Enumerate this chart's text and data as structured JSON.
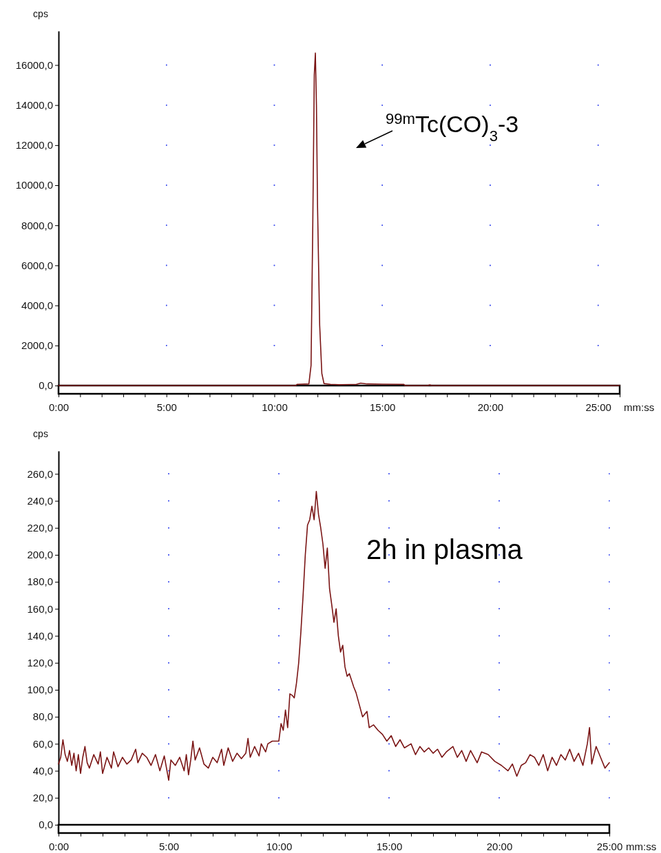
{
  "chart_data": [
    {
      "type": "line",
      "xlabel": "mm:ss",
      "ylabel": "cps",
      "grid": true,
      "xlim": [
        0,
        26
      ],
      "ylim": [
        0,
        17700
      ],
      "xticks": [
        {
          "value": 0,
          "label": "0:00"
        },
        {
          "value": 1,
          "label": null
        },
        {
          "value": 2,
          "label": null
        },
        {
          "value": 3,
          "label": null
        },
        {
          "value": 4,
          "label": null
        },
        {
          "value": 5,
          "label": "5:00"
        },
        {
          "value": 6,
          "label": null
        },
        {
          "value": 7,
          "label": null
        },
        {
          "value": 8,
          "label": null
        },
        {
          "value": 9,
          "label": null
        },
        {
          "value": 10,
          "label": "10:00"
        },
        {
          "value": 11,
          "label": null
        },
        {
          "value": 12,
          "label": null
        },
        {
          "value": 13,
          "label": null
        },
        {
          "value": 14,
          "label": null
        },
        {
          "value": 15,
          "label": "15:00"
        },
        {
          "value": 16,
          "label": null
        },
        {
          "value": 17,
          "label": null
        },
        {
          "value": 18,
          "label": null
        },
        {
          "value": 19,
          "label": null
        },
        {
          "value": 20,
          "label": "20:00"
        },
        {
          "value": 21,
          "label": null
        },
        {
          "value": 22,
          "label": null
        },
        {
          "value": 23,
          "label": null
        },
        {
          "value": 24,
          "label": null
        },
        {
          "value": 25,
          "label": "25:00"
        },
        {
          "value": 26,
          "label": null
        }
      ],
      "yticks": [
        {
          "value": 0,
          "label": "0,0"
        },
        {
          "value": 2000,
          "label": "2000,0"
        },
        {
          "value": 4000,
          "label": "4000,0"
        },
        {
          "value": 6000,
          "label": "6000,0"
        },
        {
          "value": 8000,
          "label": "8000,0"
        },
        {
          "value": 10000,
          "label": "10000,0"
        },
        {
          "value": 12000,
          "label": "12000,0"
        },
        {
          "value": 14000,
          "label": "14000,0"
        },
        {
          "value": 16000,
          "label": "16000,0"
        }
      ],
      "annotations": [
        "$^{99m}$Tc(CO)$_{3}$-3"
      ],
      "series": [
        {
          "color": "#7a1414",
          "x": [
            0,
            11.0,
            11.05,
            11.6,
            11.7,
            11.78,
            11.85,
            11.9,
            11.95,
            12.0,
            12.1,
            12.2,
            12.3,
            12.6,
            13.0,
            13.8,
            14.0,
            14.3,
            15.0,
            16.0,
            16.05,
            17.1,
            17.2,
            17.3,
            26
          ],
          "values": [
            0,
            0,
            60,
            80,
            1000,
            8000,
            15500,
            16600,
            14000,
            9000,
            3000,
            600,
            100,
            60,
            40,
            60,
            120,
            80,
            70,
            60,
            0,
            0,
            30,
            0,
            0
          ]
        }
      ]
    },
    {
      "type": "line",
      "xlabel": "mm:ss",
      "ylabel": "cps",
      "grid": true,
      "xlim": [
        0,
        25
      ],
      "ylim": [
        0,
        277
      ],
      "xticks": [
        {
          "value": 0,
          "label": "0:00"
        },
        {
          "value": 1,
          "label": null
        },
        {
          "value": 2,
          "label": null
        },
        {
          "value": 3,
          "label": null
        },
        {
          "value": 4,
          "label": null
        },
        {
          "value": 5,
          "label": "5:00"
        },
        {
          "value": 6,
          "label": null
        },
        {
          "value": 7,
          "label": null
        },
        {
          "value": 8,
          "label": null
        },
        {
          "value": 9,
          "label": null
        },
        {
          "value": 10,
          "label": "10:00"
        },
        {
          "value": 11,
          "label": null
        },
        {
          "value": 12,
          "label": null
        },
        {
          "value": 13,
          "label": null
        },
        {
          "value": 14,
          "label": null
        },
        {
          "value": 15,
          "label": "15:00"
        },
        {
          "value": 16,
          "label": null
        },
        {
          "value": 17,
          "label": null
        },
        {
          "value": 18,
          "label": null
        },
        {
          "value": 19,
          "label": null
        },
        {
          "value": 20,
          "label": "20:00"
        },
        {
          "value": 21,
          "label": null
        },
        {
          "value": 22,
          "label": null
        },
        {
          "value": 23,
          "label": null
        },
        {
          "value": 24,
          "label": null
        },
        {
          "value": 25,
          "label": "25:00"
        }
      ],
      "yticks": [
        {
          "value": 0,
          "label": "0,0"
        },
        {
          "value": 20,
          "label": "20,0"
        },
        {
          "value": 40,
          "label": "40,0"
        },
        {
          "value": 60,
          "label": "60,0"
        },
        {
          "value": 80,
          "label": "80,0"
        },
        {
          "value": 100,
          "label": "100,0"
        },
        {
          "value": 120,
          "label": "120,0"
        },
        {
          "value": 140,
          "label": "140,0"
        },
        {
          "value": 160,
          "label": "160,0"
        },
        {
          "value": 180,
          "label": "180,0"
        },
        {
          "value": 200,
          "label": "200,0"
        },
        {
          "value": 220,
          "label": "220,0"
        },
        {
          "value": 240,
          "label": "240,0"
        },
        {
          "value": 260,
          "label": "260,0"
        }
      ],
      "annotations": [
        "2h in plasma"
      ],
      "series": [
        {
          "color": "#7a1414",
          "x": [
            0,
            0.1,
            0.2,
            0.3,
            0.4,
            0.5,
            0.6,
            0.7,
            0.8,
            0.9,
            1.0,
            1.1,
            1.2,
            1.3,
            1.4,
            1.6,
            1.8,
            1.9,
            2.0,
            2.2,
            2.4,
            2.5,
            2.7,
            2.9,
            3.1,
            3.3,
            3.5,
            3.6,
            3.8,
            4.0,
            4.2,
            4.4,
            4.6,
            4.8,
            5.0,
            5.1,
            5.3,
            5.5,
            5.7,
            5.8,
            5.9,
            6.0,
            6.1,
            6.2,
            6.4,
            6.6,
            6.8,
            7.0,
            7.2,
            7.4,
            7.5,
            7.7,
            7.9,
            8.1,
            8.3,
            8.5,
            8.6,
            8.7,
            8.9,
            9.1,
            9.2,
            9.4,
            9.5,
            9.7,
            9.9,
            10.0,
            10.1,
            10.2,
            10.3,
            10.4,
            10.5,
            10.6,
            10.7,
            10.8,
            10.9,
            11.0,
            11.1,
            11.2,
            11.3,
            11.4,
            11.5,
            11.6,
            11.7,
            11.8,
            11.9,
            12.0,
            12.1,
            12.2,
            12.3,
            12.4,
            12.5,
            12.6,
            12.7,
            12.8,
            12.9,
            13.0,
            13.1,
            13.2,
            13.4,
            13.5,
            13.6,
            13.8,
            14.0,
            14.1,
            14.3,
            14.5,
            14.7,
            14.9,
            15.1,
            15.3,
            15.5,
            15.7,
            16.0,
            16.2,
            16.4,
            16.6,
            16.8,
            17.0,
            17.2,
            17.4,
            17.6,
            17.9,
            18.1,
            18.3,
            18.5,
            18.7,
            19.0,
            19.2,
            19.5,
            19.8,
            20.1,
            20.4,
            20.6,
            20.8,
            21.0,
            21.2,
            21.4,
            21.6,
            21.8,
            22.0,
            22.2,
            22.4,
            22.6,
            22.8,
            23.0,
            23.2,
            23.4,
            23.6,
            23.8,
            24.0,
            24.1,
            24.2,
            24.4,
            24.6,
            24.8,
            25.0
          ],
          "values": [
            45,
            50,
            63,
            52,
            47,
            55,
            44,
            53,
            40,
            52,
            38,
            50,
            58,
            46,
            42,
            52,
            45,
            54,
            38,
            50,
            42,
            54,
            43,
            50,
            45,
            48,
            56,
            46,
            53,
            50,
            44,
            52,
            40,
            51,
            33,
            48,
            44,
            50,
            40,
            52,
            37,
            48,
            62,
            48,
            57,
            45,
            42,
            50,
            46,
            56,
            44,
            57,
            47,
            53,
            49,
            53,
            64,
            50,
            58,
            51,
            60,
            54,
            60,
            62,
            62,
            62,
            75,
            70,
            85,
            72,
            97,
            96,
            94,
            105,
            120,
            143,
            170,
            200,
            222,
            226,
            236,
            226,
            247,
            230,
            220,
            208,
            190,
            205,
            175,
            163,
            150,
            160,
            140,
            128,
            133,
            117,
            110,
            112,
            102,
            98,
            92,
            80,
            84,
            72,
            74,
            70,
            67,
            62,
            66,
            58,
            63,
            57,
            60,
            52,
            58,
            54,
            57,
            53,
            56,
            50,
            54,
            58,
            50,
            55,
            47,
            55,
            46,
            54,
            52,
            47,
            44,
            40,
            45,
            36,
            44,
            46,
            52,
            50,
            44,
            52,
            40,
            50,
            44,
            52,
            48,
            56,
            47,
            53,
            44,
            60,
            72,
            45,
            58,
            50,
            42,
            46
          ]
        }
      ]
    }
  ]
}
